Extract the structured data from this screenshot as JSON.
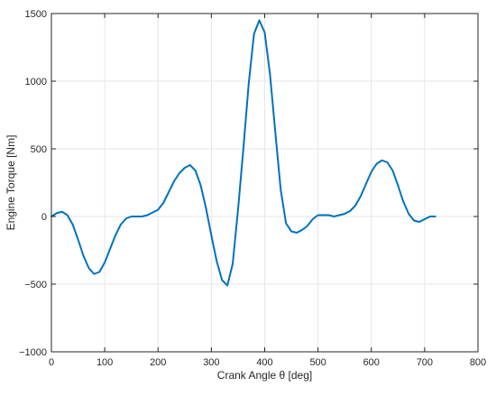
{
  "chart_data": {
    "type": "line",
    "title": "",
    "xlabel": "Crank Angle θ [deg]",
    "ylabel": "Engine Torque [Nm]",
    "xlim": [
      0,
      800
    ],
    "ylim": [
      -1000,
      1500
    ],
    "x_ticks": [
      0,
      100,
      200,
      300,
      400,
      500,
      600,
      700,
      800
    ],
    "y_ticks": [
      -1000,
      -500,
      0,
      500,
      1000,
      1500
    ],
    "x_tick_labels": [
      "0",
      "100",
      "200",
      "300",
      "400",
      "500",
      "600",
      "700",
      "800"
    ],
    "y_tick_labels": [
      "−1000",
      "−500",
      "0",
      "500",
      "1000",
      "1500"
    ],
    "grid": true,
    "box": true,
    "series": [
      {
        "name": "",
        "color": "#0072BD",
        "x": [
          0,
          10,
          20,
          30,
          40,
          50,
          60,
          70,
          80,
          90,
          100,
          110,
          120,
          130,
          140,
          150,
          160,
          170,
          180,
          190,
          200,
          210,
          220,
          230,
          240,
          250,
          260,
          270,
          280,
          290,
          300,
          310,
          320,
          330,
          340,
          350,
          360,
          370,
          380,
          390,
          400,
          410,
          420,
          430,
          440,
          450,
          460,
          470,
          480,
          490,
          500,
          510,
          520,
          530,
          540,
          550,
          560,
          570,
          580,
          590,
          600,
          610,
          620,
          630,
          640,
          650,
          660,
          670,
          680,
          690,
          700,
          710,
          720
        ],
        "y": [
          0,
          25,
          35,
          10,
          -60,
          -170,
          -290,
          -380,
          -425,
          -410,
          -340,
          -240,
          -140,
          -60,
          -15,
          0,
          0,
          0,
          10,
          30,
          50,
          100,
          180,
          260,
          320,
          360,
          380,
          340,
          230,
          60,
          -140,
          -330,
          -470,
          -510,
          -350,
          50,
          500,
          980,
          1350,
          1450,
          1360,
          1050,
          620,
          200,
          -50,
          -110,
          -120,
          -100,
          -70,
          -20,
          10,
          10,
          10,
          0,
          10,
          20,
          40,
          80,
          150,
          240,
          330,
          390,
          415,
          400,
          340,
          230,
          110,
          20,
          -30,
          -40,
          -20,
          0,
          0
        ]
      }
    ]
  }
}
